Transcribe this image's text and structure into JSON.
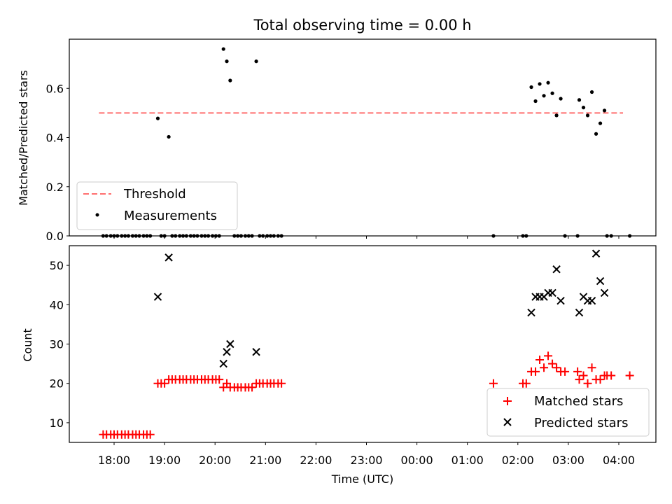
{
  "chart_data": {
    "title": "Total observing time = 0.00 h",
    "xlabel": "Time (UTC)",
    "x_ticks": [
      "18:00",
      "19:00",
      "20:00",
      "21:00",
      "22:00",
      "23:00",
      "00:00",
      "01:00",
      "02:00",
      "03:00",
      "04:00"
    ],
    "top": {
      "type": "scatter",
      "ylabel": "Matched/Predicted stars",
      "ylim": [
        0,
        0.8
      ],
      "yticks": [
        "0.0",
        "0.2",
        "0.4",
        "0.6"
      ],
      "threshold": {
        "name": "Threshold",
        "value": 0.5,
        "x_range": [
          "17:42",
          "04:05"
        ],
        "color": "#ff6f6f"
      },
      "legend": {
        "position": "lower-left",
        "entries": [
          "Threshold",
          "Measurements"
        ]
      },
      "series": [
        {
          "name": "Measurements",
          "color": "#000000",
          "points": [
            [
              "17:47",
              0
            ],
            [
              "17:51",
              0
            ],
            [
              "17:56",
              0
            ],
            [
              "18:00",
              0
            ],
            [
              "18:04",
              0
            ],
            [
              "18:09",
              0
            ],
            [
              "18:13",
              0
            ],
            [
              "18:17",
              0
            ],
            [
              "18:22",
              0
            ],
            [
              "18:26",
              0
            ],
            [
              "18:30",
              0
            ],
            [
              "18:35",
              0
            ],
            [
              "18:39",
              0
            ],
            [
              "18:43",
              0
            ],
            [
              "18:52",
              0.478
            ],
            [
              "18:56",
              0
            ],
            [
              "19:00",
              0
            ],
            [
              "19:05",
              0.403
            ],
            [
              "19:09",
              0
            ],
            [
              "19:13",
              0
            ],
            [
              "19:18",
              0
            ],
            [
              "19:22",
              0
            ],
            [
              "19:26",
              0
            ],
            [
              "19:31",
              0
            ],
            [
              "19:35",
              0
            ],
            [
              "19:39",
              0
            ],
            [
              "19:44",
              0
            ],
            [
              "19:48",
              0
            ],
            [
              "19:52",
              0
            ],
            [
              "19:57",
              0
            ],
            [
              "20:01",
              0
            ],
            [
              "20:05",
              0
            ],
            [
              "20:10",
              0.76
            ],
            [
              "20:14",
              0.71
            ],
            [
              "20:18",
              0.632
            ],
            [
              "20:23",
              0
            ],
            [
              "20:27",
              0
            ],
            [
              "20:31",
              0
            ],
            [
              "20:36",
              0
            ],
            [
              "20:40",
              0
            ],
            [
              "20:44",
              0
            ],
            [
              "20:49",
              0.71
            ],
            [
              "20:53",
              0
            ],
            [
              "20:57",
              0
            ],
            [
              "21:02",
              0
            ],
            [
              "21:06",
              0
            ],
            [
              "21:10",
              0
            ],
            [
              "21:15",
              0
            ],
            [
              "21:19",
              0
            ],
            [
              "01:31",
              0
            ],
            [
              "02:06",
              0
            ],
            [
              "02:10",
              0
            ],
            [
              "02:16",
              0.605
            ],
            [
              "02:21",
              0.548
            ],
            [
              "02:26",
              0.618
            ],
            [
              "02:31",
              0.57
            ],
            [
              "02:36",
              0.623
            ],
            [
              "02:41",
              0.58
            ],
            [
              "02:46",
              0.49
            ],
            [
              "02:51",
              0.558
            ],
            [
              "02:56",
              0
            ],
            [
              "03:11",
              0
            ],
            [
              "03:13",
              0.553
            ],
            [
              "03:18",
              0.522
            ],
            [
              "03:23",
              0.49
            ],
            [
              "03:28",
              0.585
            ],
            [
              "03:33",
              0.415
            ],
            [
              "03:38",
              0.458
            ],
            [
              "03:43",
              0.51
            ],
            [
              "03:46",
              0
            ],
            [
              "03:51",
              0
            ],
            [
              "04:13",
              0
            ]
          ]
        }
      ]
    },
    "bottom": {
      "type": "scatter",
      "ylabel": "Count",
      "ylim": [
        5,
        55
      ],
      "yticks": [
        "10",
        "20",
        "30",
        "40",
        "50"
      ],
      "legend": {
        "position": "lower-right",
        "entries": [
          "Matched stars",
          "Predicted stars"
        ]
      },
      "series": [
        {
          "name": "Matched stars",
          "marker": "+",
          "color": "#ff0000",
          "points": [
            [
              "17:47",
              7
            ],
            [
              "17:51",
              7
            ],
            [
              "17:56",
              7
            ],
            [
              "18:00",
              7
            ],
            [
              "18:04",
              7
            ],
            [
              "18:09",
              7
            ],
            [
              "18:13",
              7
            ],
            [
              "18:17",
              7
            ],
            [
              "18:22",
              7
            ],
            [
              "18:26",
              7
            ],
            [
              "18:30",
              7
            ],
            [
              "18:35",
              7
            ],
            [
              "18:39",
              7
            ],
            [
              "18:43",
              7
            ],
            [
              "18:52",
              20
            ],
            [
              "18:56",
              20
            ],
            [
              "19:00",
              20
            ],
            [
              "19:05",
              21
            ],
            [
              "19:09",
              21
            ],
            [
              "19:13",
              21
            ],
            [
              "19:18",
              21
            ],
            [
              "19:22",
              21
            ],
            [
              "19:26",
              21
            ],
            [
              "19:31",
              21
            ],
            [
              "19:35",
              21
            ],
            [
              "19:39",
              21
            ],
            [
              "19:44",
              21
            ],
            [
              "19:48",
              21
            ],
            [
              "19:52",
              21
            ],
            [
              "19:57",
              21
            ],
            [
              "20:01",
              21
            ],
            [
              "20:05",
              21
            ],
            [
              "20:10",
              19
            ],
            [
              "20:14",
              20
            ],
            [
              "20:18",
              19
            ],
            [
              "20:23",
              19
            ],
            [
              "20:27",
              19
            ],
            [
              "20:31",
              19
            ],
            [
              "20:36",
              19
            ],
            [
              "20:40",
              19
            ],
            [
              "20:44",
              19
            ],
            [
              "20:49",
              20
            ],
            [
              "20:53",
              20
            ],
            [
              "20:57",
              20
            ],
            [
              "21:02",
              20
            ],
            [
              "21:06",
              20
            ],
            [
              "21:10",
              20
            ],
            [
              "21:15",
              20
            ],
            [
              "21:19",
              20
            ],
            [
              "01:31",
              20
            ],
            [
              "02:06",
              20
            ],
            [
              "02:10",
              20
            ],
            [
              "02:16",
              23
            ],
            [
              "02:21",
              23
            ],
            [
              "02:26",
              26
            ],
            [
              "02:31",
              24
            ],
            [
              "02:36",
              27
            ],
            [
              "02:41",
              25
            ],
            [
              "02:46",
              24
            ],
            [
              "02:51",
              23
            ],
            [
              "02:56",
              23
            ],
            [
              "03:11",
              23
            ],
            [
              "03:13",
              21
            ],
            [
              "03:18",
              22
            ],
            [
              "03:23",
              20
            ],
            [
              "03:28",
              24
            ],
            [
              "03:33",
              21
            ],
            [
              "03:38",
              21
            ],
            [
              "03:43",
              22
            ],
            [
              "03:46",
              22
            ],
            [
              "03:51",
              22
            ],
            [
              "04:13",
              22
            ]
          ]
        },
        {
          "name": "Predicted stars",
          "marker": "x",
          "color": "#000000",
          "points": [
            [
              "18:52",
              42
            ],
            [
              "19:05",
              52
            ],
            [
              "20:10",
              25
            ],
            [
              "20:14",
              28
            ],
            [
              "20:18",
              30
            ],
            [
              "20:49",
              28
            ],
            [
              "02:16",
              38
            ],
            [
              "02:21",
              42
            ],
            [
              "02:26",
              42
            ],
            [
              "02:31",
              42
            ],
            [
              "02:36",
              43
            ],
            [
              "02:41",
              43
            ],
            [
              "02:46",
              49
            ],
            [
              "02:51",
              41
            ],
            [
              "03:13",
              38
            ],
            [
              "03:18",
              42
            ],
            [
              "03:23",
              41
            ],
            [
              "03:28",
              41
            ],
            [
              "03:33",
              53
            ],
            [
              "03:38",
              46
            ],
            [
              "03:43",
              43
            ]
          ]
        }
      ]
    }
  }
}
